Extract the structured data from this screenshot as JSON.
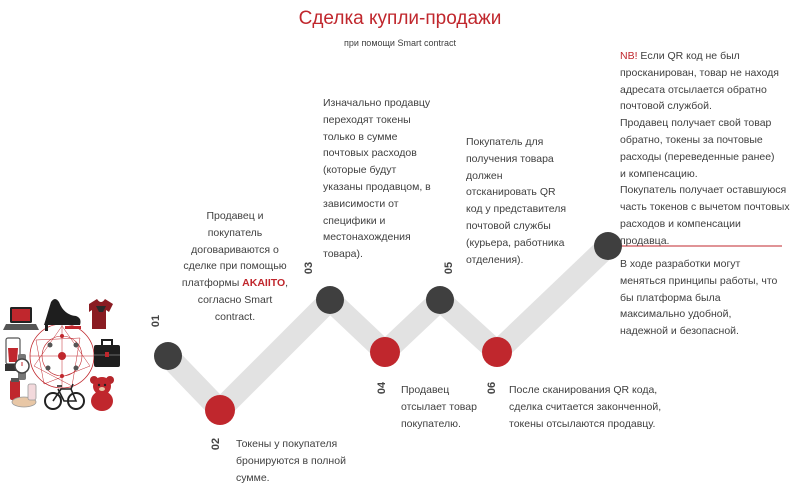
{
  "header": {
    "title": "Сделка купли-продажи",
    "subtitle": "при помощи Smart contract"
  },
  "steps": [
    {
      "num": "01",
      "lines": [
        "Продавец и",
        "покупатель",
        "договариваются о",
        "сделке при помощью"
      ],
      "platform_prefix": "платформы ",
      "platform_brand": "AKAIITO",
      "platform_suffix": ",",
      "tail": [
        "согласно Smart",
        "contract."
      ]
    },
    {
      "num": "02",
      "lines": [
        "Токены у покупателя",
        "бронируются в полной",
        "сумме."
      ]
    },
    {
      "num": "03",
      "lines": [
        "Изначально продавцу",
        "переходят токены",
        "только в сумме",
        "почтовых расходов",
        "(которые будут",
        "указаны продавцом, в",
        "зависимости от",
        "специфики и",
        "местонахождения",
        "товара)."
      ]
    },
    {
      "num": "04",
      "lines": [
        "Продавец",
        "отсылает товар",
        "покупателю."
      ]
    },
    {
      "num": "05",
      "lines": [
        "Покупатель для",
        "получения товара",
        "должен",
        "отсканировать QR",
        "код у представителя",
        "почтовой службы",
        "(курьера, работника",
        "отделения)."
      ]
    },
    {
      "num": "06",
      "lines": [
        "После сканирования QR кода,",
        "сделка считается законченной,",
        "токены отсылаются продавцу."
      ]
    }
  ],
  "note": {
    "nb_label": "NB!",
    "first_line_rest": " Если QR код не был",
    "lines": [
      "просканирован, товар не находя",
      "адресата отсылается обратно",
      "почтовой службой.",
      "Продавец получает свой товар",
      "обратно, токены за почтовые",
      "расходы (переведенные ранее)",
      "и компенсацию.",
      "Покупатель получает оставшуюся",
      "часть токенов с вычетом почтовых",
      "расходов и компенсации",
      "продавца."
    ]
  },
  "closing": {
    "lines": [
      "В ходе разработки могут",
      "меняться принципы работы, что",
      "бы платформа была",
      "максимально удобной,",
      "надежной и безопасной."
    ]
  },
  "icons": [
    "laptop-icon",
    "high-heel-shoe-icon",
    "t-shirt-icon",
    "blender-icon",
    "watch-icon",
    "network-hub-icon",
    "briefcase-icon",
    "cosmetics-icon",
    "bicycle-icon",
    "teddy-bear-icon"
  ],
  "colors": {
    "accent": "#c0272d",
    "dark_node": "#3f3f3f",
    "path": "#e2e2e2",
    "text": "#404040"
  }
}
